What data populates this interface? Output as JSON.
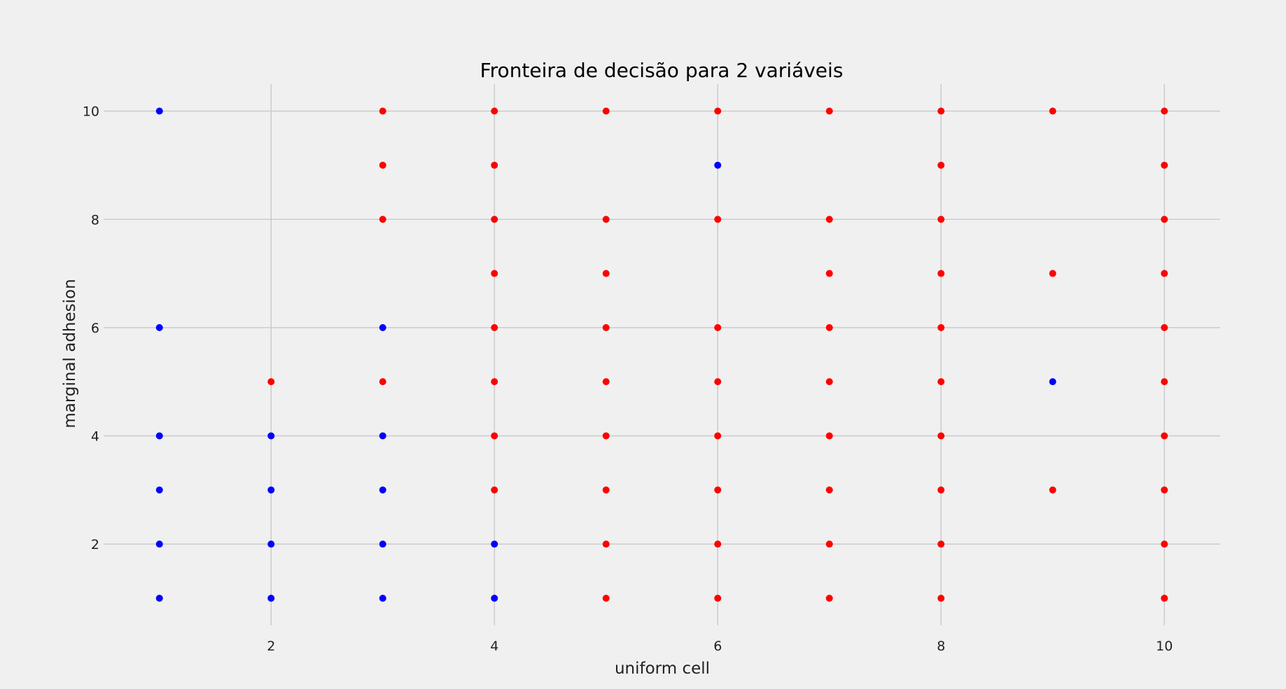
{
  "chart_data": {
    "type": "scatter",
    "title": "Fronteira de decisão para 2 variáveis",
    "xlabel": "uniform cell",
    "ylabel": "marginal adhesion",
    "xlim": [
      0.5,
      10.5
    ],
    "ylim": [
      0.5,
      10.5
    ],
    "xticks": [
      2,
      4,
      6,
      8,
      10
    ],
    "yticks": [
      2,
      4,
      6,
      8,
      10
    ],
    "grid": true,
    "series": [
      {
        "color": "#0000ff",
        "points": [
          [
            1,
            1
          ],
          [
            1,
            2
          ],
          [
            1,
            3
          ],
          [
            1,
            4
          ],
          [
            1,
            6
          ],
          [
            1,
            10
          ],
          [
            2,
            1
          ],
          [
            2,
            2
          ],
          [
            2,
            3
          ],
          [
            2,
            4
          ],
          [
            3,
            1
          ],
          [
            3,
            2
          ],
          [
            3,
            3
          ],
          [
            3,
            4
          ],
          [
            3,
            6
          ],
          [
            4,
            1
          ],
          [
            4,
            2
          ],
          [
            6,
            9
          ],
          [
            9,
            5
          ]
        ]
      },
      {
        "color": "#ff0000",
        "points": [
          [
            2,
            5
          ],
          [
            3,
            5
          ],
          [
            3,
            8
          ],
          [
            3,
            9
          ],
          [
            3,
            10
          ],
          [
            4,
            3
          ],
          [
            4,
            4
          ],
          [
            4,
            5
          ],
          [
            4,
            6
          ],
          [
            4,
            7
          ],
          [
            4,
            8
          ],
          [
            4,
            9
          ],
          [
            4,
            10
          ],
          [
            5,
            1
          ],
          [
            5,
            2
          ],
          [
            5,
            3
          ],
          [
            5,
            4
          ],
          [
            5,
            5
          ],
          [
            5,
            6
          ],
          [
            5,
            7
          ],
          [
            5,
            8
          ],
          [
            5,
            10
          ],
          [
            6,
            1
          ],
          [
            6,
            2
          ],
          [
            6,
            3
          ],
          [
            6,
            4
          ],
          [
            6,
            5
          ],
          [
            6,
            6
          ],
          [
            6,
            8
          ],
          [
            6,
            10
          ],
          [
            7,
            1
          ],
          [
            7,
            2
          ],
          [
            7,
            3
          ],
          [
            7,
            4
          ],
          [
            7,
            5
          ],
          [
            7,
            6
          ],
          [
            7,
            7
          ],
          [
            7,
            8
          ],
          [
            7,
            10
          ],
          [
            8,
            1
          ],
          [
            8,
            2
          ],
          [
            8,
            3
          ],
          [
            8,
            4
          ],
          [
            8,
            5
          ],
          [
            8,
            6
          ],
          [
            8,
            7
          ],
          [
            8,
            8
          ],
          [
            8,
            9
          ],
          [
            8,
            10
          ],
          [
            9,
            3
          ],
          [
            9,
            7
          ],
          [
            9,
            10
          ],
          [
            10,
            1
          ],
          [
            10,
            2
          ],
          [
            10,
            3
          ],
          [
            10,
            4
          ],
          [
            10,
            5
          ],
          [
            10,
            6
          ],
          [
            10,
            7
          ],
          [
            10,
            8
          ],
          [
            10,
            9
          ],
          [
            10,
            10
          ]
        ]
      }
    ]
  }
}
